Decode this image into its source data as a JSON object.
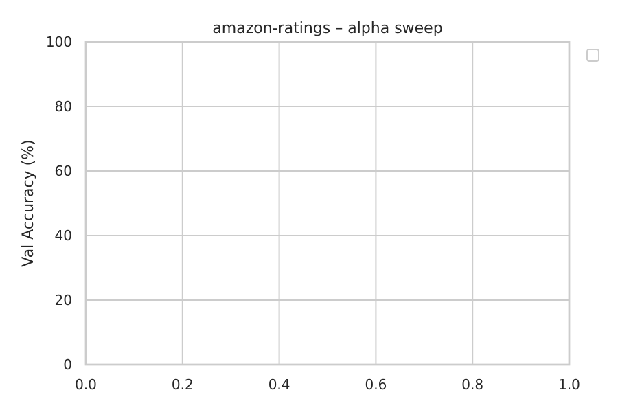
{
  "chart_data": {
    "type": "line",
    "title": "amazon-ratings – alpha sweep",
    "xlabel": "",
    "ylabel": "Val Accuracy (%)",
    "xlim": [
      0.0,
      1.0
    ],
    "ylim": [
      0,
      100
    ],
    "x_ticks": [
      "0.0",
      "0.2",
      "0.4",
      "0.6",
      "0.8",
      "1.0"
    ],
    "y_ticks": [
      "0",
      "20",
      "40",
      "60",
      "80",
      "100"
    ],
    "series": [],
    "grid": true,
    "legend": {
      "placement": "outside-top-right",
      "entries": []
    }
  }
}
